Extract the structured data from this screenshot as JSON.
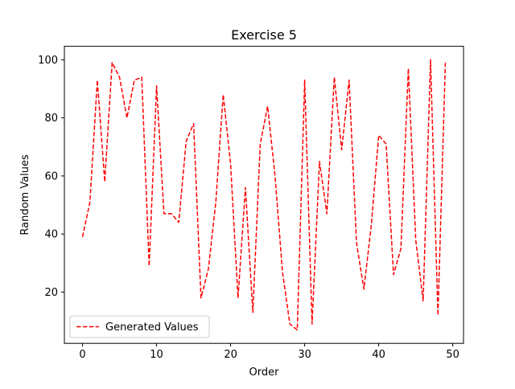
{
  "chart_data": {
    "type": "line",
    "title": "Exercise 5",
    "xlabel": "Order",
    "ylabel": "Random Values",
    "xlim": [
      -2.45,
      51.45
    ],
    "ylim": [
      2.35,
      104.65
    ],
    "xticks": [
      0,
      10,
      20,
      30,
      40,
      50
    ],
    "yticks": [
      20,
      40,
      60,
      80,
      100
    ],
    "grid": false,
    "legend_position": "lower-left",
    "series": [
      {
        "name": "Generated Values",
        "color": "#ff0000",
        "line_style": "dashed",
        "x": [
          0,
          1,
          2,
          3,
          4,
          5,
          6,
          7,
          8,
          9,
          10,
          11,
          12,
          13,
          14,
          15,
          16,
          17,
          18,
          19,
          20,
          21,
          22,
          23,
          24,
          25,
          26,
          27,
          28,
          29,
          30,
          31,
          32,
          33,
          34,
          35,
          36,
          37,
          38,
          39,
          40,
          41,
          42,
          43,
          44,
          45,
          46,
          47,
          48,
          49
        ],
        "values": [
          39,
          51,
          93,
          58,
          99,
          94,
          80,
          93,
          94,
          29,
          91,
          47,
          47,
          44,
          72,
          78,
          18,
          28,
          51,
          88,
          64,
          18,
          56,
          13,
          71,
          84,
          60,
          27,
          9,
          7,
          93,
          9,
          65,
          47,
          94,
          69,
          93,
          37,
          21,
          43,
          74,
          71,
          26,
          35,
          97,
          38,
          17,
          100,
          12,
          99
        ]
      }
    ]
  }
}
